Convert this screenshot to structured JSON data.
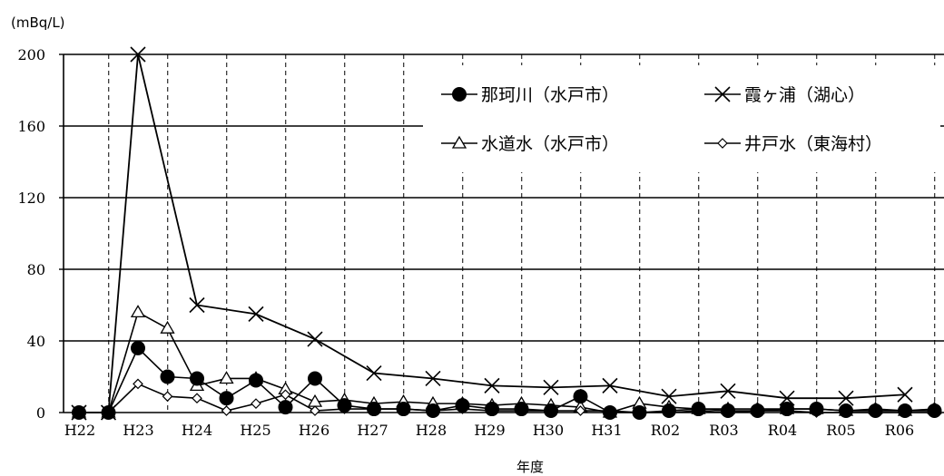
{
  "chart_data": {
    "type": "line",
    "ylabel": "(mBq/L)",
    "xlabel": "年度",
    "ylim": [
      0,
      200
    ],
    "yticks": [
      0,
      40,
      80,
      120,
      160,
      200
    ],
    "grid": true,
    "legend_position": "top-right",
    "x": [
      "H22",
      "H22.5",
      "H23",
      "H23.5",
      "H24",
      "H24.5",
      "H25",
      "H25.5",
      "H26",
      "H26.5",
      "H27",
      "H27.5",
      "H28",
      "H28.5",
      "H29",
      "H29.5",
      "H30",
      "H30.5",
      "H31",
      "H31.5",
      "R02",
      "R02.5",
      "R03",
      "R03.5",
      "R04",
      "R04.5",
      "R05",
      "R05.5",
      "R06",
      "R06.5"
    ],
    "categories": [
      "H22",
      "H23",
      "H24",
      "H25",
      "H26",
      "H27",
      "H28",
      "H29",
      "H30",
      "H31",
      "R02",
      "R03",
      "R04",
      "R05",
      "R06"
    ],
    "series": [
      {
        "name": "那珂川（水戸市）",
        "marker": "filled-circle",
        "values": [
          0,
          0,
          36,
          20,
          19,
          8,
          18,
          3,
          19,
          4,
          2,
          2,
          1,
          4,
          2,
          2,
          1,
          9,
          0,
          0,
          1,
          2,
          1,
          1,
          2,
          2,
          1,
          1,
          1,
          1
        ]
      },
      {
        "name": "霞ヶ浦（湖心）",
        "marker": "x",
        "values": [
          0,
          0,
          200,
          null,
          60,
          null,
          55,
          null,
          41,
          null,
          22,
          null,
          19,
          null,
          15,
          null,
          14,
          null,
          15,
          null,
          9,
          null,
          12,
          null,
          8,
          null,
          8,
          null,
          10,
          null
        ]
      },
      {
        "name": "水道水（水戸市）",
        "marker": "open-triangle",
        "values": [
          0,
          0,
          56,
          47,
          15,
          19,
          19,
          13,
          6,
          7,
          5,
          6,
          5,
          5,
          4,
          5,
          4,
          3,
          0,
          5,
          3,
          2,
          2,
          2,
          2,
          2,
          1,
          2,
          1,
          2
        ]
      },
      {
        "name": "井戸水（東海村）",
        "marker": "open-diamond",
        "values": [
          0,
          0,
          16,
          9,
          8,
          1,
          5,
          10,
          1,
          2,
          2,
          2,
          1,
          2,
          1,
          1,
          1,
          1,
          1,
          0,
          0,
          1,
          0,
          1,
          1,
          0,
          0,
          0,
          0,
          0
        ]
      }
    ]
  }
}
